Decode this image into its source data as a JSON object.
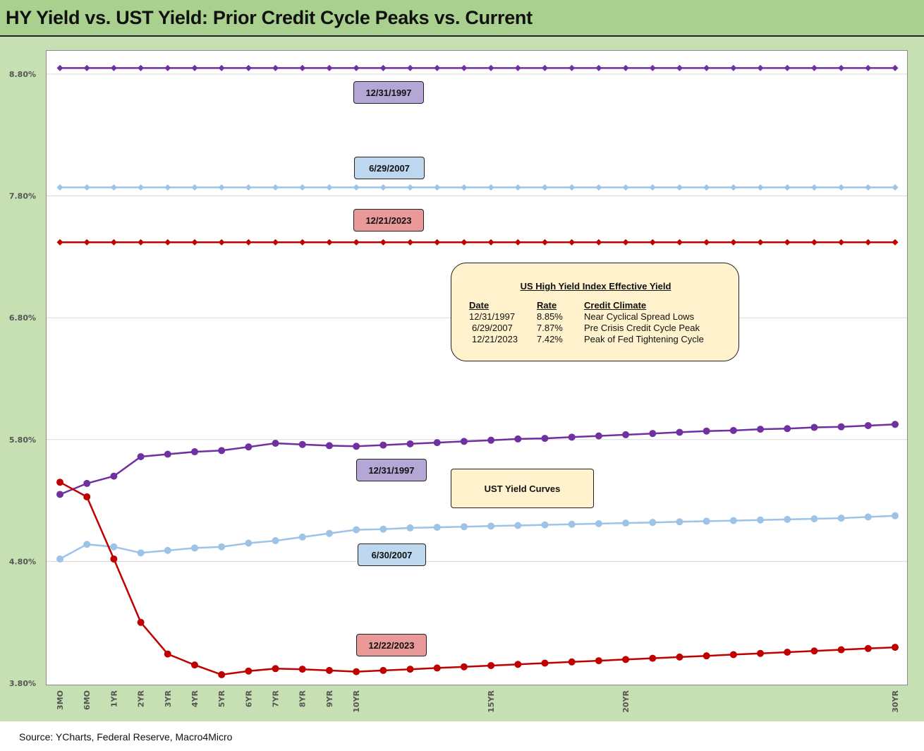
{
  "title": "HY Yield vs. UST Yield: Prior Credit Cycle Peaks vs. Current",
  "source": "Source: YCharts, Federal Reserve, Macro4Micro",
  "colors": {
    "purple": "#7030a0",
    "light_blue": "#9dc3e6",
    "red": "#c00000",
    "panel_green": "#c6e0b4",
    "title_green": "#a9d08e",
    "tag_purple": "#b4a7d6",
    "tag_blue": "#bdd7ee",
    "tag_red": "#ea9999",
    "box_cream": "#fff2cc"
  },
  "labels": {
    "hy_1997": "12/31/1997",
    "hy_2007": "6/29/2007",
    "hy_2023": "12/21/2023",
    "ust_1997": "12/31/1997",
    "ust_2007": "6/30/2007",
    "ust_2023": "12/22/2023",
    "ust_box": "UST Yield Curves"
  },
  "hy_table": {
    "title": "US High Yield Index Effective Yield",
    "headers": [
      "Date",
      "Rate",
      "Credit Climate"
    ],
    "rows": [
      [
        "12/31/1997",
        "8.85%",
        "Near Cyclical Spread Lows"
      ],
      [
        "6/29/2007",
        "7.87%",
        "Pre Crisis Credit Cycle Peak"
      ],
      [
        "12/21/2023",
        "7.42%",
        "Peak of Fed Tightening Cycle"
      ]
    ]
  },
  "chart_data": {
    "type": "line",
    "title": "HY Yield vs. UST Yield: Prior Credit Cycle Peaks vs. Current",
    "xlabel": "",
    "ylabel": "",
    "ylim": [
      3.8,
      8.8
    ],
    "y_ticks": [
      "3.80%",
      "4.80%",
      "5.80%",
      "6.80%",
      "7.80%",
      "8.80%"
    ],
    "x_tick_labels": [
      "3MO",
      "6MO",
      "1YR",
      "2YR",
      "3YR",
      "4YR",
      "5YR",
      "6YR",
      "7YR",
      "8YR",
      "9YR",
      "10YR",
      "15YR",
      "20YR",
      "30YR"
    ],
    "x_tick_positions": [
      0,
      1,
      2,
      3,
      4,
      5,
      6,
      7,
      8,
      9,
      10,
      11,
      16,
      21,
      31
    ],
    "x_points": [
      0,
      1,
      2,
      3,
      4,
      5,
      6,
      7,
      8,
      9,
      10,
      11,
      12,
      13,
      14,
      15,
      16,
      17,
      18,
      19,
      20,
      21,
      22,
      23,
      24,
      25,
      26,
      27,
      28,
      29,
      30,
      31
    ],
    "grid": true,
    "series": [
      {
        "name": "12/31/1997",
        "kind": "HY",
        "color": "#7030a0",
        "marker": "diamond",
        "values": [
          8.85,
          8.85,
          8.85,
          8.85,
          8.85,
          8.85,
          8.85,
          8.85,
          8.85,
          8.85,
          8.85,
          8.85,
          8.85,
          8.85,
          8.85,
          8.85,
          8.85,
          8.85,
          8.85,
          8.85,
          8.85,
          8.85,
          8.85,
          8.85,
          8.85,
          8.85,
          8.85,
          8.85,
          8.85,
          8.85,
          8.85,
          8.85
        ]
      },
      {
        "name": "6/29/2007",
        "kind": "HY",
        "color": "#9dc3e6",
        "marker": "diamond",
        "values": [
          7.87,
          7.87,
          7.87,
          7.87,
          7.87,
          7.87,
          7.87,
          7.87,
          7.87,
          7.87,
          7.87,
          7.87,
          7.87,
          7.87,
          7.87,
          7.87,
          7.87,
          7.87,
          7.87,
          7.87,
          7.87,
          7.87,
          7.87,
          7.87,
          7.87,
          7.87,
          7.87,
          7.87,
          7.87,
          7.87,
          7.87,
          7.87
        ]
      },
      {
        "name": "12/21/2023",
        "kind": "HY",
        "color": "#c00000",
        "marker": "diamond",
        "values": [
          7.42,
          7.42,
          7.42,
          7.42,
          7.42,
          7.42,
          7.42,
          7.42,
          7.42,
          7.42,
          7.42,
          7.42,
          7.42,
          7.42,
          7.42,
          7.42,
          7.42,
          7.42,
          7.42,
          7.42,
          7.42,
          7.42,
          7.42,
          7.42,
          7.42,
          7.42,
          7.42,
          7.42,
          7.42,
          7.42,
          7.42,
          7.42
        ]
      },
      {
        "name": "12/31/1997",
        "kind": "UST",
        "color": "#7030a0",
        "marker": "circle",
        "values": [
          5.35,
          5.44,
          5.5,
          5.66,
          5.68,
          5.7,
          5.71,
          5.74,
          5.77,
          5.76,
          5.75,
          5.745,
          5.755,
          5.765,
          5.775,
          5.785,
          5.795,
          5.805,
          5.81,
          5.82,
          5.83,
          5.84,
          5.85,
          5.86,
          5.87,
          5.875,
          5.885,
          5.89,
          5.9,
          5.905,
          5.915,
          5.925
        ]
      },
      {
        "name": "6/30/2007",
        "kind": "UST",
        "color": "#9dc3e6",
        "marker": "circle",
        "values": [
          4.82,
          4.94,
          4.92,
          4.87,
          4.89,
          4.91,
          4.92,
          4.95,
          4.97,
          5.0,
          5.03,
          5.06,
          5.065,
          5.075,
          5.08,
          5.085,
          5.09,
          5.095,
          5.1,
          5.105,
          5.11,
          5.115,
          5.12,
          5.125,
          5.13,
          5.135,
          5.14,
          5.145,
          5.15,
          5.155,
          5.165,
          5.175
        ]
      },
      {
        "name": "12/22/2023",
        "kind": "UST",
        "color": "#c00000",
        "marker": "circle",
        "values": [
          5.45,
          5.33,
          4.82,
          4.3,
          4.04,
          3.95,
          3.87,
          3.9,
          3.92,
          3.915,
          3.905,
          3.895,
          3.905,
          3.915,
          3.925,
          3.935,
          3.945,
          3.955,
          3.965,
          3.975,
          3.985,
          3.995,
          4.005,
          4.015,
          4.025,
          4.035,
          4.045,
          4.055,
          4.065,
          4.075,
          4.085,
          4.095
        ]
      }
    ]
  }
}
